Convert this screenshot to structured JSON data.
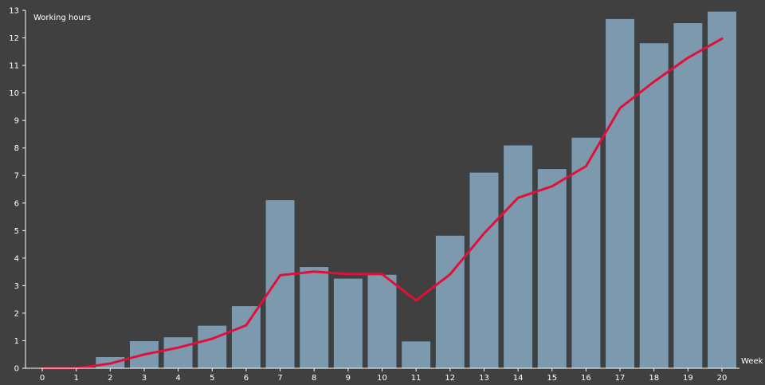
{
  "chart_data": {
    "type": "bar",
    "ylabel": "Working hours",
    "xlabel": "Week",
    "x": [
      0,
      1,
      2,
      3,
      4,
      5,
      6,
      7,
      8,
      9,
      10,
      11,
      12,
      13,
      14,
      15,
      16,
      17,
      18,
      19,
      20
    ],
    "xlim": [
      0,
      20
    ],
    "ylim": [
      0,
      13
    ],
    "yticks": [
      0,
      1,
      2,
      3,
      4,
      5,
      6,
      7,
      8,
      9,
      10,
      11,
      12,
      13
    ],
    "grid": false,
    "series": [
      {
        "kind": "bar",
        "values": [
          0,
          0,
          0.42,
          1.0,
          1.14,
          1.56,
          2.27,
          6.12,
          3.69,
          3.27,
          3.41,
          0.99,
          4.83,
          7.12,
          8.11,
          7.25,
          8.39,
          12.7,
          11.82,
          12.55,
          12.97
        ],
        "color": "#7c99ae"
      },
      {
        "kind": "line",
        "values": [
          0.0,
          0.0,
          0.17,
          0.5,
          0.75,
          1.07,
          1.56,
          3.38,
          3.51,
          3.42,
          3.42,
          2.46,
          3.41,
          4.9,
          6.19,
          6.61,
          7.34,
          9.45,
          10.41,
          11.28,
          11.97
        ],
        "color": "#e0103a"
      }
    ]
  }
}
